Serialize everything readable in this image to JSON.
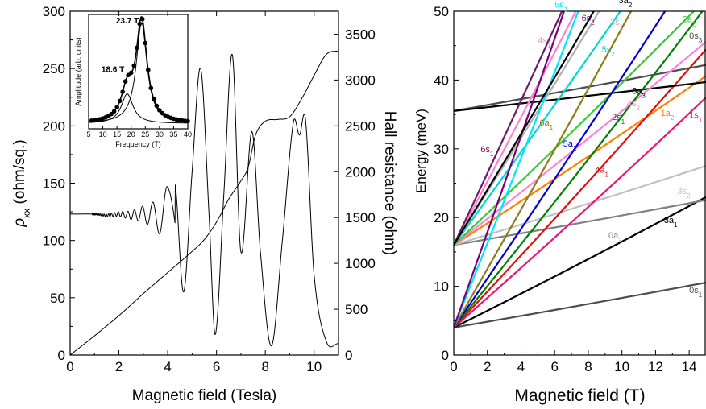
{
  "chart_data": [
    {
      "type": "line",
      "xlabel": "Magnetic field (Tesla)",
      "ylabel": "ρxx (ohm/sq.)",
      "ylabel_right": "Hall resistance (ohm)",
      "xlim": [
        0,
        11
      ],
      "ylim": [
        0,
        300
      ],
      "ylim_right": [
        0,
        3750
      ],
      "xticks": [
        "0",
        "2",
        "4",
        "6",
        "8",
        "10"
      ],
      "yticks": [
        "0",
        "50",
        "100",
        "150",
        "200",
        "250",
        "300"
      ],
      "yticks_right": [
        "0",
        "500",
        "1000",
        "1500",
        "2000",
        "2500",
        "3000",
        "3500"
      ],
      "series": [
        {
          "axis": "left",
          "x": [
            0,
            1.0,
            1.5,
            2.0,
            2.5,
            3.0,
            3.5,
            4.0,
            4.3,
            4.65,
            5.0,
            5.35,
            5.7,
            5.95,
            6.3,
            6.65,
            7.0,
            7.45,
            7.8,
            8.25,
            8.7,
            9.15,
            9.4,
            9.65,
            10.0,
            10.5,
            11.0
          ],
          "y": [
            123,
            123,
            122,
            123,
            122,
            123,
            122,
            125,
            150,
            55,
            160,
            250,
            120,
            18,
            140,
            262,
            90,
            195,
            90,
            8,
            100,
            203,
            192,
            205,
            70,
            12,
            10
          ]
        },
        {
          "axis": "right",
          "x": [
            0,
            1,
            2,
            3,
            4,
            5,
            5.5,
            6,
            6.5,
            7,
            7.3,
            7.6,
            8,
            8.5,
            9,
            9.5,
            10,
            10.5,
            11
          ],
          "y": [
            0,
            210,
            430,
            670,
            900,
            1130,
            1260,
            1450,
            1700,
            1900,
            2050,
            2400,
            2550,
            2570,
            2600,
            2800,
            3050,
            3280,
            3320
          ]
        }
      ],
      "inset": {
        "type": "line",
        "xlabel": "Frequency (T)",
        "ylabel": "Amplitude (arb. units)",
        "xlim": [
          5,
          40
        ],
        "xticks": [
          "5",
          "10",
          "15",
          "20",
          "25",
          "30",
          "35",
          "40"
        ],
        "annotations": [
          "18.6 T",
          "23.7 T"
        ],
        "peaks": [
          {
            "center": 18.6,
            "height": 0.22,
            "width": 2.5
          },
          {
            "center": 23.7,
            "height": 0.75,
            "width": 2.3
          }
        ],
        "baseline": 0.04,
        "points_x": [
          6,
          7,
          8,
          9,
          10,
          11,
          12,
          13,
          14,
          15,
          16,
          17,
          18,
          19,
          20,
          21,
          22,
          23,
          24,
          25,
          26,
          27,
          28,
          29,
          30,
          31,
          32,
          33,
          34,
          35,
          36,
          37,
          38,
          39,
          40
        ]
      }
    },
    {
      "type": "line",
      "xlabel": "Magnetic field (T)",
      "ylabel": "Energy (meV)",
      "xlim": [
        0,
        15
      ],
      "ylim": [
        0,
        50
      ],
      "xticks": [
        "0",
        "2",
        "4",
        "6",
        "8",
        "10",
        "12",
        "14"
      ],
      "yticks": [
        "0",
        "10",
        "20",
        "30",
        "40",
        "50"
      ],
      "series": [
        {
          "name": "0s",
          "sub": "1",
          "color": "#4d4d4d",
          "e0": 4,
          "slope": 0.42,
          "label_pos": [
            14.0,
            9.0
          ]
        },
        {
          "name": "3a",
          "sub": "1",
          "color": "#000000",
          "e0": 4,
          "slope": 1.22,
          "label_pos": [
            12.5,
            19.2
          ]
        },
        {
          "name": "0a",
          "sub": "2",
          "color": "#808080",
          "e0": 16,
          "slope": 0.42,
          "label_pos": [
            9.2,
            17.0
          ]
        },
        {
          "name": "3s",
          "sub": "2",
          "color": "#c0c0c0",
          "e0": 16,
          "slope": 0.74,
          "label_pos": [
            13.3,
            23.4
          ]
        },
        {
          "name": "1s",
          "sub": "1",
          "color": "#e8157a",
          "e0": 4,
          "slope": 2.15,
          "label_pos": [
            14.0,
            34.5
          ]
        },
        {
          "name": "1a",
          "sub": "2",
          "color": "#ff8000",
          "e0": 16,
          "slope": 1.58,
          "label_pos": [
            12.3,
            34.8
          ]
        },
        {
          "name": "4a",
          "sub": "1",
          "color": "#e01010",
          "e0": 4,
          "slope": 2.6,
          "label_pos": [
            8.4,
            26.5
          ]
        },
        {
          "name": "0s",
          "sub": "3",
          "color": "#4d4d4d",
          "e0": 35.5,
          "slope": 0.43,
          "label_pos": [
            14.0,
            46.0
          ]
        },
        {
          "name": "3a",
          "sub": "3",
          "color": "#000000",
          "e0": 35.5,
          "slope": 0.27,
          "label_pos": [
            10.6,
            38.0
          ]
        },
        {
          "name": "4s",
          "sub": "2",
          "color": "#ff80e0",
          "e0": 16,
          "slope": 1.9,
          "label_pos": [
            10.3,
            36.2
          ]
        },
        {
          "name": "2s",
          "sub": "1",
          "color": "#008000",
          "e0": 4,
          "slope": 3.0,
          "label_pos": [
            9.4,
            34.2
          ]
        },
        {
          "name": "2a",
          "sub": "2",
          "color": "#33cc33",
          "e0": 16,
          "slope": 2.3,
          "label_pos": [
            13.6,
            48.4
          ]
        },
        {
          "name": "5a",
          "sub": "1",
          "color": "#0000cc",
          "e0": 4,
          "slope": 3.55,
          "label_pos": [
            6.5,
            30.3
          ]
        },
        {
          "name": "6a",
          "sub": "1",
          "color": "#8b7d1a",
          "e0": 4,
          "slope": 4.25,
          "label_pos": [
            5.1,
            33.4
          ]
        },
        {
          "name": "5s",
          "sub": "2",
          "color": "#00d6d6",
          "e0": 16,
          "slope": 3.35,
          "label_pos": [
            8.8,
            44.0
          ]
        },
        {
          "name": "3s",
          "sub": "1",
          "color": "#b0b0b0",
          "e0": 16,
          "slope": 3.85,
          "label_pos": [
            9.3,
            48.0
          ]
        },
        {
          "name": "4s",
          "sub": "1",
          "color": "#ff7fd0",
          "e0": 16,
          "slope": 4.6,
          "label_pos": [
            5.0,
            45.3
          ]
        },
        {
          "name": "6s",
          "sub": "2",
          "color": "#6a1b6a",
          "e0": 16,
          "slope": 5.2,
          "label_pos": [
            7.6,
            48.6
          ]
        },
        {
          "name": "5s",
          "sub": "1",
          "color": "#00e5ff",
          "e0": 4,
          "slope": 6.1,
          "label_pos": [
            6.0,
            50.5
          ]
        },
        {
          "name": "6s",
          "sub": "1",
          "color": "#7a007a",
          "e0": 4,
          "slope": 6.9,
          "label_pos": [
            1.6,
            29.5
          ]
        },
        {
          "name": "3a",
          "sub": "2",
          "color": "#000000",
          "e0": 16,
          "slope": 4.0,
          "label_pos": [
            9.8,
            51.2
          ]
        }
      ]
    }
  ]
}
